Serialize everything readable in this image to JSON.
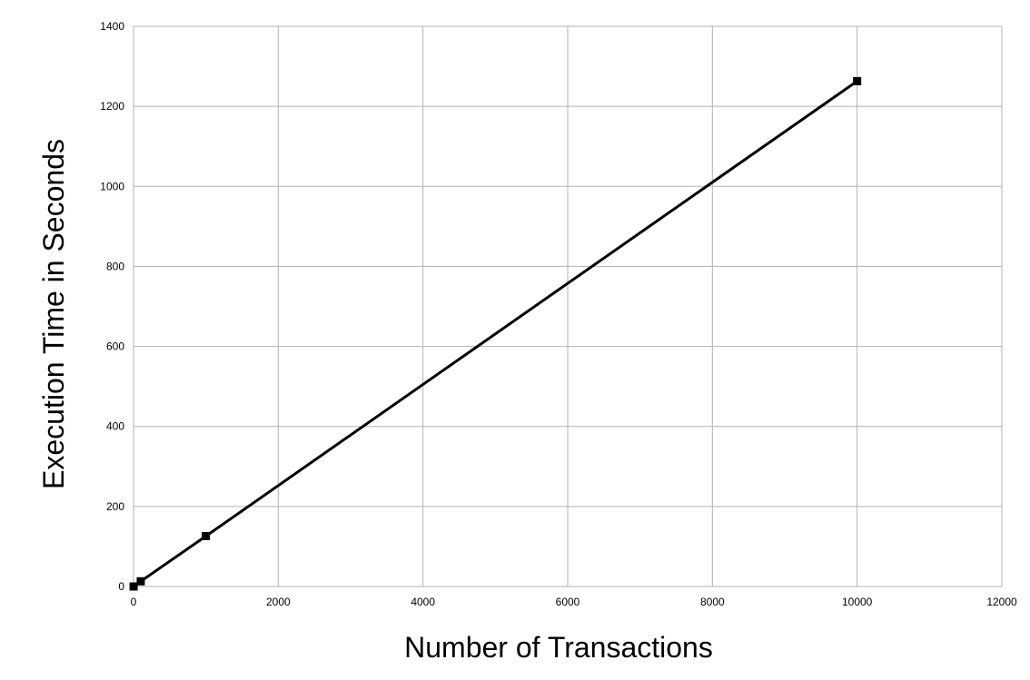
{
  "chart_data": {
    "type": "line",
    "title": "",
    "xlabel": "Number of Transactions",
    "ylabel": "Execution Time in Seconds",
    "xlim": [
      0,
      12000
    ],
    "ylim": [
      0,
      1400
    ],
    "x_ticks": [
      "0",
      "2000",
      "4000",
      "6000",
      "8000",
      "10000",
      "12000"
    ],
    "y_ticks": [
      "0",
      "200",
      "400",
      "600",
      "800",
      "1000",
      "1200",
      "1400"
    ],
    "grid": true,
    "legend": "none",
    "marker": "square",
    "series": [
      {
        "color": "#000000",
        "points": [
          {
            "x": 1,
            "y": 0
          },
          {
            "x": 100,
            "y": 13
          },
          {
            "x": 1000,
            "y": 126
          },
          {
            "x": 10000,
            "y": 1263
          }
        ]
      }
    ]
  }
}
